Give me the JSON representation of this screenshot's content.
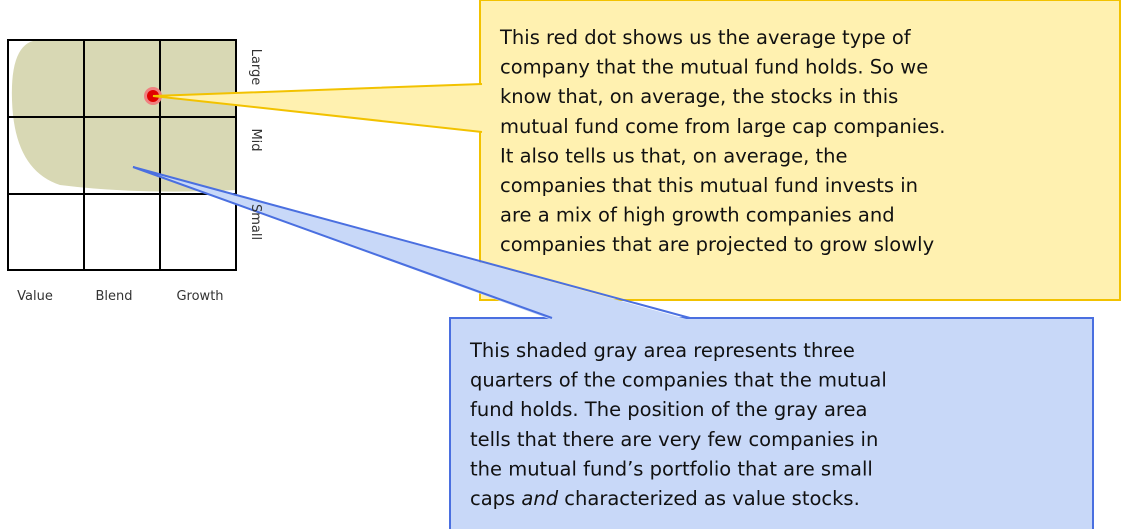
{
  "style_box": {
    "row_labels": [
      "Large",
      "Mid",
      "Small"
    ],
    "column_labels": [
      "Value",
      "Blend",
      "Growth"
    ]
  },
  "callouts": [
    {
      "lines": [
        "This red dot shows us the average type of",
        "company that the mutual fund holds.  So we",
        "know that, on average, the stocks in this",
        "mutual fund come from large cap companies.",
        "It also tells us that, on average, the",
        "companies that this mutual fund invests in",
        "are a mix of high growth companies and",
        "companies that are projected to grow slowly"
      ]
    },
    {
      "lines": [
        "This shaded gray area represents three",
        "quarters of the companies that the mutual",
        "fund holds.  The position of the gray area",
        "tells that there are very few companies in",
        "the mutual fund’s portfolio that are small"
      ],
      "last_line": [
        "caps ",
        "and",
        " characterized as value stocks."
      ]
    }
  ]
}
